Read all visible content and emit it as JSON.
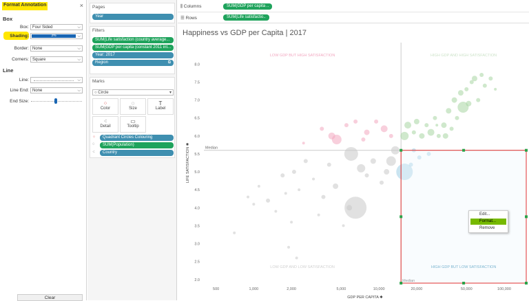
{
  "format_panel": {
    "title": "Format Annotation",
    "close": "×",
    "box_section": "Box",
    "box_label": "Box:",
    "box_value": "Four Sided",
    "shading_label": "Shading:",
    "shading_value": "3%",
    "border_label": "Border:",
    "border_value": "None",
    "corners_label": "Corners:",
    "corners_value": "Square",
    "line_section": "Line",
    "line_label": "Line:",
    "line_value": "",
    "line_end_label": "Line End:",
    "line_end_value": "None",
    "end_size_label": "End Size:",
    "clear_label": "Clear",
    "highlight_color": "#ffe600"
  },
  "pages": {
    "title": "Pages",
    "pill": "Year"
  },
  "filters": {
    "title": "Filters",
    "items": [
      "SUM(Life satisfaction (country average...",
      "SUM(GDP per capita (constant 2011 int...",
      "Year: 2017",
      "Region"
    ]
  },
  "marks": {
    "title": "Marks",
    "type": "Circle",
    "buttons": [
      "Color",
      "Size",
      "Label",
      "Detail",
      "Tooltip"
    ],
    "pills": [
      "Quadrant Circles Colouring",
      "SUM(Population)",
      "Country"
    ]
  },
  "shelves": {
    "columns_label": "Columns",
    "columns_pill": "SUM(GDP per capita ..",
    "rows_label": "Rows",
    "rows_pill": "SUM(Life satisfactio.."
  },
  "chart_data": {
    "type": "scatter",
    "title": "Happiness vs GDP per Capita | 2017",
    "xlabel": "GDP PER CAPITA",
    "ylabel": "LIFE SATISFACTION",
    "x_scale": "log",
    "x_ticks": [
      "500",
      "1,000",
      "2,000",
      "5,000",
      "10,000",
      "20,000",
      "50,000",
      "100,000"
    ],
    "x_tick_values": [
      500,
      1000,
      2000,
      5000,
      10000,
      20000,
      50000,
      100000
    ],
    "y_ticks": [
      "8.0",
      "7.5",
      "7.0",
      "6.5",
      "6.0",
      "5.5",
      "5.0",
      "4.5",
      "4.0",
      "3.5",
      "3.0",
      "2.5",
      "2.0"
    ],
    "y_tick_values": [
      8.0,
      7.5,
      7.0,
      6.5,
      6.0,
      5.5,
      5.0,
      4.5,
      4.0,
      3.5,
      3.0,
      2.5,
      2.0
    ],
    "xlim": [
      400,
      150000
    ],
    "ylim": [
      1.9,
      8.6
    ],
    "median_x": 15000,
    "median_y": 5.6,
    "median_label": "Median",
    "quadrant_labels": {
      "top_left": "LOW GDP BUT HIGH SATISFACTION",
      "top_right": "HIGH GDP AND HIGH SATISFACTION",
      "bottom_left": "LOW GDP AND LOW SATISFACTION",
      "bottom_right": "HIGH GDP BUT LOW SATISFACTION"
    },
    "colors": {
      "top_left": "#f2a7c0",
      "top_right": "#a8d5a2",
      "bottom_left": "#c8c8c8",
      "bottom_right": "#9fcde3"
    },
    "points": [
      {
        "x": 700,
        "y": 3.3,
        "r": 2,
        "q": "bl"
      },
      {
        "x": 900,
        "y": 4.3,
        "r": 2,
        "q": "bl"
      },
      {
        "x": 1100,
        "y": 4.6,
        "r": 2,
        "q": "bl"
      },
      {
        "x": 1300,
        "y": 4.2,
        "r": 3,
        "q": "bl"
      },
      {
        "x": 1500,
        "y": 3.9,
        "r": 2,
        "q": "bl"
      },
      {
        "x": 1700,
        "y": 4.9,
        "r": 3,
        "q": "bl"
      },
      {
        "x": 1800,
        "y": 4.4,
        "r": 2,
        "q": "bl"
      },
      {
        "x": 2000,
        "y": 3.6,
        "r": 2,
        "q": "bl"
      },
      {
        "x": 2100,
        "y": 5.0,
        "r": 3,
        "q": "bl"
      },
      {
        "x": 2300,
        "y": 4.5,
        "r": 2,
        "q": "bl"
      },
      {
        "x": 2600,
        "y": 5.3,
        "r": 3,
        "q": "bl"
      },
      {
        "x": 3000,
        "y": 4.8,
        "r": 2,
        "q": "bl"
      },
      {
        "x": 3300,
        "y": 3.8,
        "r": 2,
        "q": "bl"
      },
      {
        "x": 3600,
        "y": 4.3,
        "r": 3,
        "q": "bl"
      },
      {
        "x": 4000,
        "y": 5.2,
        "r": 3,
        "q": "bl"
      },
      {
        "x": 4500,
        "y": 4.6,
        "r": 4,
        "q": "bl"
      },
      {
        "x": 5200,
        "y": 3.5,
        "r": 2,
        "q": "bl"
      },
      {
        "x": 5800,
        "y": 4.0,
        "r": 4,
        "q": "bl"
      },
      {
        "x": 6500,
        "y": 4.0,
        "r": 16,
        "q": "bl"
      },
      {
        "x": 7200,
        "y": 5.1,
        "r": 6,
        "q": "bl"
      },
      {
        "x": 8000,
        "y": 4.9,
        "r": 3,
        "q": "bl"
      },
      {
        "x": 9000,
        "y": 5.3,
        "r": 4,
        "q": "bl"
      },
      {
        "x": 10500,
        "y": 4.7,
        "r": 3,
        "q": "bl"
      },
      {
        "x": 11500,
        "y": 5.0,
        "r": 4,
        "q": "bl"
      },
      {
        "x": 12500,
        "y": 5.3,
        "r": 7,
        "q": "bl"
      },
      {
        "x": 2200,
        "y": 2.6,
        "r": 2,
        "q": "bl"
      },
      {
        "x": 1000,
        "y": 4.1,
        "r": 2,
        "q": "bl"
      },
      {
        "x": 1900,
        "y": 2.9,
        "r": 2,
        "q": "bl"
      },
      {
        "x": 6000,
        "y": 5.5,
        "r": 10,
        "q": "bl"
      },
      {
        "x": 13500,
        "y": 5.6,
        "r": 6,
        "q": "bl"
      },
      {
        "x": 2500,
        "y": 5.8,
        "r": 2,
        "q": "tl"
      },
      {
        "x": 3500,
        "y": 6.2,
        "r": 3,
        "q": "tl"
      },
      {
        "x": 4200,
        "y": 6.0,
        "r": 5,
        "q": "tl"
      },
      {
        "x": 4600,
        "y": 5.9,
        "r": 7,
        "q": "tl"
      },
      {
        "x": 5500,
        "y": 6.3,
        "r": 3,
        "q": "tl"
      },
      {
        "x": 6500,
        "y": 6.4,
        "r": 3,
        "q": "tl"
      },
      {
        "x": 8000,
        "y": 6.1,
        "r": 4,
        "q": "tl"
      },
      {
        "x": 9500,
        "y": 6.4,
        "r": 3,
        "q": "tl"
      },
      {
        "x": 11000,
        "y": 6.2,
        "r": 5,
        "q": "tl"
      },
      {
        "x": 12500,
        "y": 6.0,
        "r": 3,
        "q": "tl"
      },
      {
        "x": 7500,
        "y": 5.9,
        "r": 3,
        "q": "tl"
      },
      {
        "x": 16000,
        "y": 5.0,
        "r": 12,
        "q": "br"
      },
      {
        "x": 18000,
        "y": 5.2,
        "r": 3,
        "q": "br"
      },
      {
        "x": 21000,
        "y": 5.4,
        "r": 3,
        "q": "br"
      },
      {
        "x": 25000,
        "y": 5.5,
        "r": 3,
        "q": "br"
      },
      {
        "x": 19000,
        "y": 5.6,
        "r": 3,
        "q": "br"
      },
      {
        "x": 16000,
        "y": 6.0,
        "r": 6,
        "q": "tr"
      },
      {
        "x": 17000,
        "y": 6.3,
        "r": 5,
        "q": "tr"
      },
      {
        "x": 19000,
        "y": 6.1,
        "r": 3,
        "q": "tr"
      },
      {
        "x": 20000,
        "y": 6.4,
        "r": 4,
        "q": "tr"
      },
      {
        "x": 22000,
        "y": 6.0,
        "r": 4,
        "q": "tr"
      },
      {
        "x": 24000,
        "y": 6.3,
        "r": 3,
        "q": "tr"
      },
      {
        "x": 26000,
        "y": 6.1,
        "r": 5,
        "q": "tr"
      },
      {
        "x": 28000,
        "y": 6.5,
        "r": 3,
        "q": "tr"
      },
      {
        "x": 30000,
        "y": 6.0,
        "r": 3,
        "q": "tr"
      },
      {
        "x": 33000,
        "y": 6.3,
        "r": 4,
        "q": "tr"
      },
      {
        "x": 36000,
        "y": 6.7,
        "r": 4,
        "q": "tr"
      },
      {
        "x": 38000,
        "y": 6.2,
        "r": 3,
        "q": "tr"
      },
      {
        "x": 40000,
        "y": 7.0,
        "r": 4,
        "q": "tr"
      },
      {
        "x": 42000,
        "y": 6.5,
        "r": 3,
        "q": "tr"
      },
      {
        "x": 45000,
        "y": 7.2,
        "r": 4,
        "q": "tr"
      },
      {
        "x": 47000,
        "y": 6.8,
        "r": 8,
        "q": "tr"
      },
      {
        "x": 50000,
        "y": 7.3,
        "r": 3,
        "q": "tr"
      },
      {
        "x": 52000,
        "y": 6.9,
        "r": 4,
        "q": "tr"
      },
      {
        "x": 55000,
        "y": 7.5,
        "r": 3,
        "q": "tr"
      },
      {
        "x": 58000,
        "y": 7.6,
        "r": 4,
        "q": "tr"
      },
      {
        "x": 62000,
        "y": 7.0,
        "r": 3,
        "q": "tr"
      },
      {
        "x": 66000,
        "y": 7.7,
        "r": 3,
        "q": "tr"
      },
      {
        "x": 70000,
        "y": 7.4,
        "r": 3,
        "q": "tr"
      },
      {
        "x": 78000,
        "y": 7.6,
        "r": 3,
        "q": "tr"
      },
      {
        "x": 85000,
        "y": 7.3,
        "r": 2,
        "q": "tr"
      },
      {
        "x": 34000,
        "y": 6.0,
        "r": 4,
        "q": "tr"
      },
      {
        "x": 29000,
        "y": 6.3,
        "r": 2,
        "q": "tr"
      }
    ]
  },
  "context_menu": {
    "items": [
      "Edit...",
      "Format...",
      "Remove"
    ]
  }
}
